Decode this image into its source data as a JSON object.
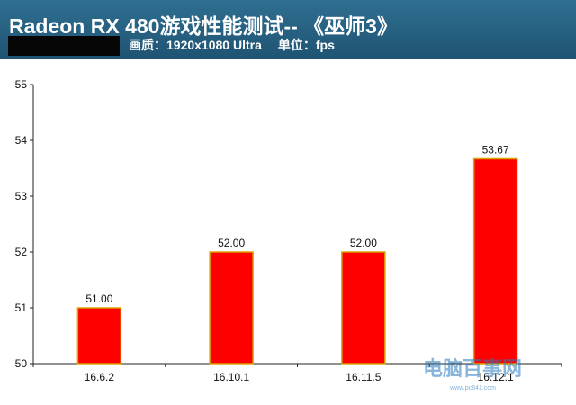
{
  "header": {
    "title": "Radeon RX 480游戏性能测试-- 《巫师3》",
    "quality_label": "画质：1920x1080 Ultra",
    "unit_label": "单位：fps",
    "background_color": "#1f5372"
  },
  "chart_data": {
    "type": "bar",
    "categories": [
      "16.6.2",
      "16.10.1",
      "16.11.5",
      "16.12.1"
    ],
    "values": [
      51.0,
      52.0,
      52.0,
      53.67
    ],
    "value_labels": [
      "51.00",
      "52.00",
      "52.00",
      "53.67"
    ],
    "y_ticks": [
      "50",
      "51",
      "52",
      "53",
      "54",
      "55"
    ],
    "ylim": [
      50,
      55
    ],
    "bar_color": "#ff0000",
    "bar_border_color": "#d8a600",
    "title": "",
    "xlabel": "",
    "ylabel": "",
    "grid": false,
    "legend": "none"
  },
  "watermark": {
    "text": "电脑百事网",
    "sub": "www.pc841.com"
  }
}
